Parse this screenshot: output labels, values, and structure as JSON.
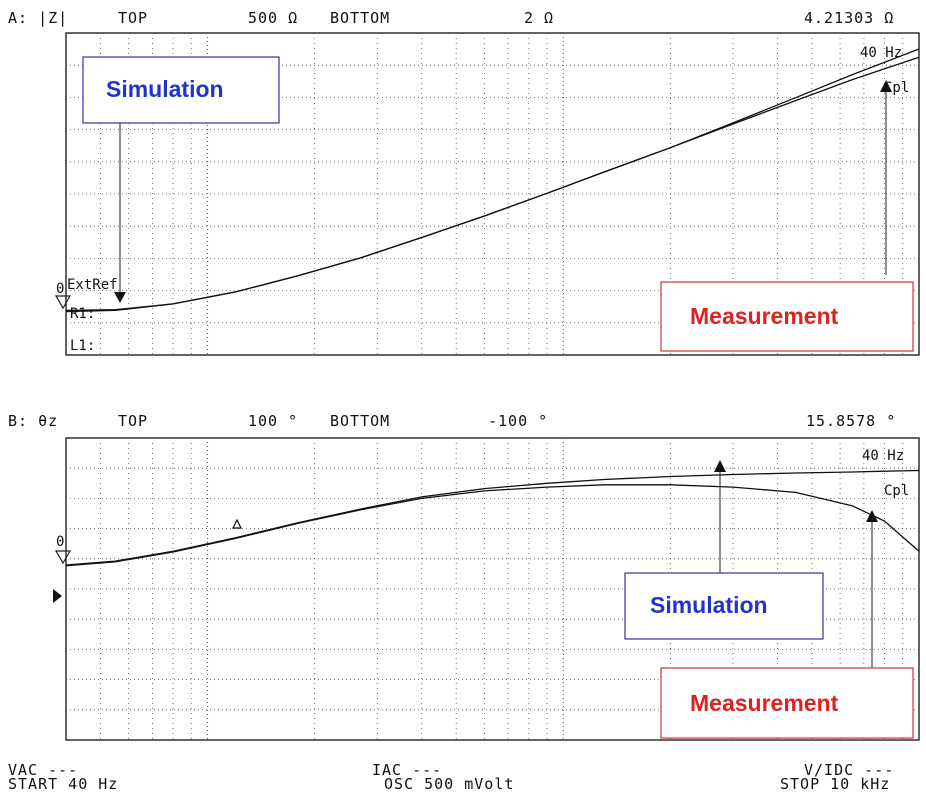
{
  "panels": {
    "A": {
      "header": {
        "channel": "A: |Z|",
        "top_label": "TOP",
        "top_value": "500 Ω",
        "bottom_label": "BOTTOM",
        "bottom_value": "2 Ω",
        "marker_value": "4.21303 Ω"
      },
      "marker_freq": "40 Hz",
      "mode": "Cpl",
      "ref_marker": "0",
      "ref_text": "ExtRef",
      "trace_label_r": "R1:",
      "trace_label_l": "L1:",
      "annotations": {
        "simulation": "Simulation",
        "measurement": "Measurement"
      }
    },
    "B": {
      "header": {
        "channel": "B: θz",
        "top_label": "TOP",
        "top_value": "100 °",
        "bottom_label": "BOTTOM",
        "bottom_value": "-100 °",
        "marker_value": "15.8578 °"
      },
      "marker_freq": "40 Hz",
      "mode": "Cpl",
      "ref_marker": "0",
      "annotations": {
        "simulation": "Simulation",
        "measurement": "Measurement"
      }
    }
  },
  "footer": {
    "vac": "VAC ---",
    "start": "START 40 Hz",
    "iac": "IAC ---",
    "osc": "OSC 500 mVolt",
    "vidc": "V/IDC ---",
    "stop": "STOP 10 kHz"
  },
  "chart_data": [
    {
      "type": "line",
      "title": "A: |Z|",
      "xlabel": "",
      "ylabel": "",
      "x_scale": "log",
      "xlim": [
        40,
        10000
      ],
      "y_scale": "log",
      "ylim": [
        2,
        500
      ],
      "grid": true,
      "x": [
        40,
        55,
        80,
        120,
        180,
        270,
        400,
        600,
        900,
        1300,
        2000,
        3000,
        4500,
        6500,
        10000
      ],
      "series": [
        {
          "name": "Simulation",
          "values": [
            4.21,
            4.3,
            4.8,
            5.9,
            7.8,
            10.6,
            15.0,
            21.7,
            32.0,
            46.0,
            70.0,
            107.0,
            165.0,
            245.0,
            380.0
          ]
        },
        {
          "name": "Measurement",
          "values": [
            4.3,
            4.35,
            4.8,
            5.9,
            7.8,
            10.6,
            15.0,
            21.7,
            32.0,
            46.0,
            70.0,
            105.0,
            157.0,
            225.0,
            330.0
          ]
        }
      ]
    },
    {
      "type": "line",
      "title": "B: θz",
      "xlabel": "",
      "ylabel": "",
      "x_scale": "log",
      "xlim": [
        40,
        10000
      ],
      "ylim": [
        -100,
        100
      ],
      "grid": true,
      "x": [
        40,
        55,
        80,
        120,
        180,
        270,
        400,
        600,
        900,
        1300,
        2000,
        3000,
        4500,
        6500,
        8000,
        10000
      ],
      "series": [
        {
          "name": "Simulation",
          "values": [
            15.9,
            18.5,
            25.0,
            34.0,
            44.0,
            53.0,
            61.0,
            66.5,
            70.0,
            72.5,
            74.5,
            75.8,
            76.8,
            77.5,
            78.0,
            78.5
          ]
        },
        {
          "name": "Measurement",
          "values": [
            15.4,
            18.0,
            24.5,
            33.5,
            43.5,
            52.5,
            60.0,
            65.0,
            67.5,
            69.0,
            69.0,
            67.5,
            64.0,
            55.0,
            45.0,
            25.0
          ]
        }
      ]
    }
  ]
}
